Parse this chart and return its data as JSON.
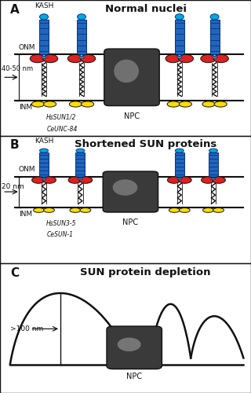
{
  "panel_A_title": "Normal nuclei",
  "panel_B_title": "Shortened SUN proteins",
  "panel_C_title": "SUN protein depletion",
  "label_A": "A",
  "label_B": "B",
  "label_C": "C",
  "label_KASH": "KASH",
  "label_ONM": "ONM",
  "label_INM": "INM",
  "label_NPC": "NPC",
  "label_40_50": "40-50 nm",
  "label_20": "20 nm",
  "label_100": ">100 nm",
  "label_HsSUN12": "HsSUN1/2",
  "label_CeUNC84": "CeUNC-84",
  "label_HsSUN35": "HsSUN3-5",
  "label_CeSUN1": "CeSUN-1",
  "color_red": "#dd2020",
  "color_yellow": "#ffdd00",
  "color_blue": "#2266bb",
  "color_dark_blue": "#003388",
  "color_cyan_blue": "#00aadd",
  "color_gray_dark": "#3a3a3a",
  "color_gray_light": "#cccccc",
  "color_gray_mid": "#888888",
  "color_white": "#ffffff",
  "color_black": "#111111",
  "bg_color": "#ffffff"
}
